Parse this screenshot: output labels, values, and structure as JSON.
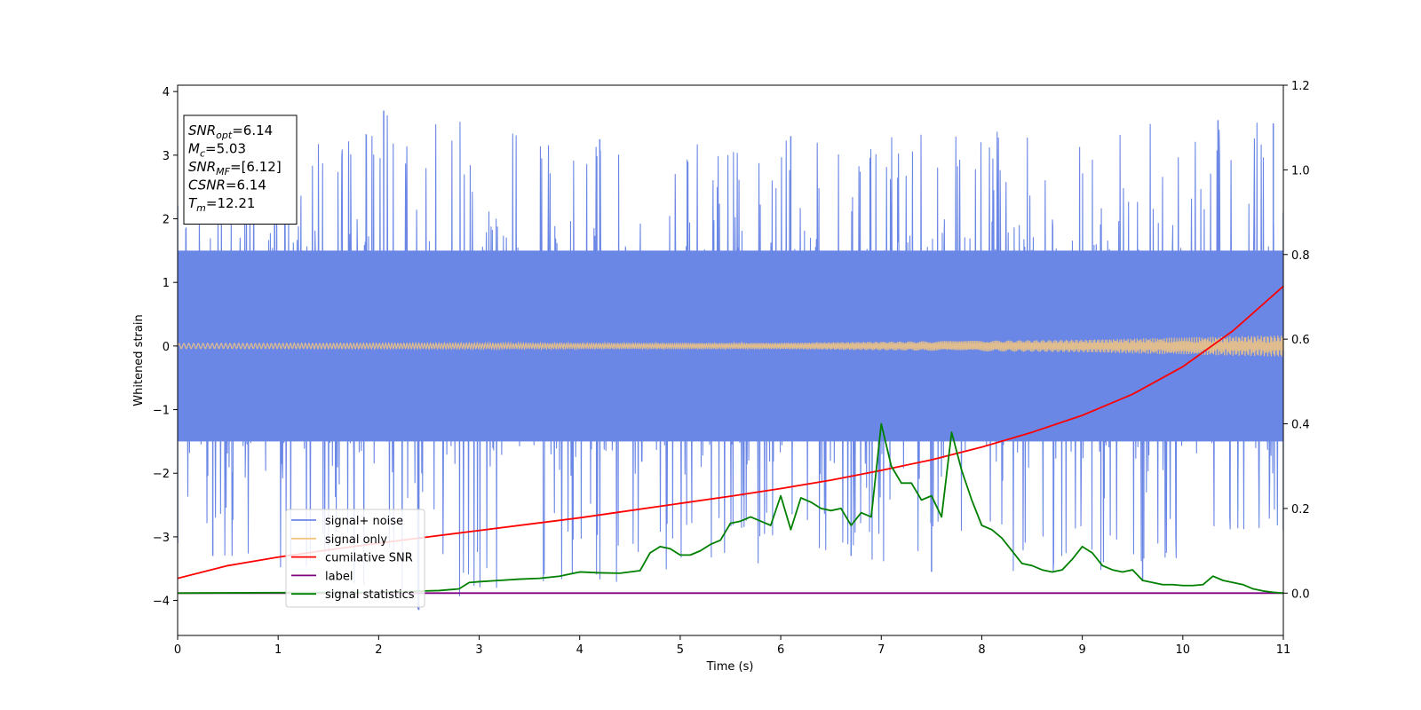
{
  "chart_data": {
    "type": "line",
    "xlabel": "Time (s)",
    "ylabel": "Whitened strain",
    "xlim": [
      0,
      11
    ],
    "ylim_left": [
      -4.55,
      4.1
    ],
    "ylim_right": [
      -0.1,
      1.2
    ],
    "x_ticks": [
      0,
      1,
      2,
      3,
      4,
      5,
      6,
      7,
      8,
      9,
      10,
      11
    ],
    "x_tick_labels": [
      "0",
      "1",
      "2",
      "3",
      "4",
      "5",
      "6",
      "7",
      "8",
      "9",
      "10",
      "11"
    ],
    "y_left_ticks": [
      4,
      3,
      2,
      1,
      0,
      -1,
      -2,
      -3,
      -4
    ],
    "y_left_tick_labels": [
      "4",
      "3",
      "2",
      "1",
      "0",
      "−1",
      "−2",
      "−3",
      "−4"
    ],
    "y_right_ticks": [
      1.2,
      1.0,
      0.8,
      0.6,
      0.4,
      0.2,
      0.0
    ],
    "y_right_tick_labels": [
      "1.2",
      "1.0",
      "0.8",
      "0.6",
      "0.4",
      "0.2",
      "0.0"
    ],
    "grid": false,
    "legend_position": "lower-left",
    "info_box": {
      "lines": [
        {
          "base": "SNR",
          "sub": "opt",
          "value": "=6.14"
        },
        {
          "base": "M",
          "sub": "c",
          "value": "=5.03"
        },
        {
          "base": "SNR",
          "sub": "MF",
          "value": "=[6.12]"
        },
        {
          "base": "CSNR",
          "sub": "",
          "value": "=6.14"
        },
        {
          "base": "T",
          "sub": "m",
          "value": "=12.21"
        }
      ]
    },
    "series": [
      {
        "name": "signal+ noise",
        "axis": "left",
        "color": "#6b87e6",
        "style": "noise",
        "envelope_upper": [
          [
            0,
            2.2
          ],
          [
            2.05,
            3.7
          ],
          [
            4.2,
            3.25
          ],
          [
            6.1,
            3.3
          ],
          [
            10.35,
            3.55
          ],
          [
            10.9,
            3.5
          ],
          [
            11,
            2.1
          ]
        ],
        "envelope_lower": [
          [
            0,
            -3.1
          ],
          [
            0.35,
            -3.3
          ],
          [
            2.4,
            -4.15
          ],
          [
            6.7,
            -3.3
          ],
          [
            7.5,
            -3.55
          ],
          [
            9.6,
            -3.7
          ],
          [
            11,
            -2.9
          ]
        ],
        "band_sigma": 0.9
      },
      {
        "name": "signal only",
        "axis": "left",
        "color": "#f5c77e",
        "style": "chirp",
        "amplitude": [
          [
            0,
            0.04
          ],
          [
            6,
            0.05
          ],
          [
            9,
            0.1
          ],
          [
            11,
            0.17
          ]
        ]
      },
      {
        "name": "cumilative SNR",
        "axis": "right",
        "color": "#ff0000",
        "x": [
          0,
          0.5,
          1,
          1.5,
          2,
          2.5,
          3,
          3.5,
          4,
          4.5,
          5,
          5.5,
          6,
          6.5,
          7,
          7.5,
          8,
          8.5,
          9,
          9.5,
          10,
          10.5,
          11
        ],
        "y": [
          0.035,
          0.065,
          0.085,
          0.102,
          0.118,
          0.133,
          0.148,
          0.163,
          0.178,
          0.195,
          0.212,
          0.229,
          0.247,
          0.267,
          0.29,
          0.315,
          0.345,
          0.38,
          0.42,
          0.47,
          0.535,
          0.62,
          0.725
        ]
      },
      {
        "name": "label",
        "axis": "right",
        "color": "#800080",
        "x": [
          0,
          11
        ],
        "y": [
          0.0,
          0.0
        ]
      },
      {
        "name": "signal statistics",
        "axis": "right",
        "color": "#008000",
        "x": [
          0,
          1,
          2,
          2.3,
          2.6,
          2.8,
          2.9,
          3.0,
          3.2,
          3.4,
          3.6,
          3.8,
          4.0,
          4.2,
          4.4,
          4.6,
          4.7,
          4.8,
          4.9,
          5.0,
          5.1,
          5.2,
          5.3,
          5.4,
          5.5,
          5.6,
          5.7,
          5.8,
          5.9,
          6.0,
          6.1,
          6.2,
          6.3,
          6.4,
          6.5,
          6.6,
          6.7,
          6.8,
          6.9,
          7.0,
          7.1,
          7.2,
          7.3,
          7.4,
          7.5,
          7.6,
          7.7,
          7.8,
          7.9,
          8.0,
          8.1,
          8.2,
          8.3,
          8.4,
          8.5,
          8.6,
          8.7,
          8.8,
          8.9,
          9.0,
          9.1,
          9.2,
          9.3,
          9.4,
          9.5,
          9.6,
          9.7,
          9.8,
          9.9,
          10.0,
          10.1,
          10.2,
          10.3,
          10.4,
          10.5,
          10.6,
          10.7,
          10.8,
          10.9,
          11.0
        ],
        "y": [
          0.0,
          0.001,
          0.002,
          0.004,
          0.006,
          0.01,
          0.025,
          0.027,
          0.03,
          0.033,
          0.035,
          0.04,
          0.05,
          0.048,
          0.047,
          0.053,
          0.095,
          0.11,
          0.105,
          0.09,
          0.09,
          0.1,
          0.115,
          0.125,
          0.165,
          0.17,
          0.18,
          0.17,
          0.16,
          0.23,
          0.15,
          0.225,
          0.215,
          0.2,
          0.195,
          0.2,
          0.16,
          0.19,
          0.18,
          0.4,
          0.3,
          0.26,
          0.26,
          0.22,
          0.23,
          0.18,
          0.38,
          0.29,
          0.22,
          0.16,
          0.15,
          0.13,
          0.1,
          0.07,
          0.065,
          0.055,
          0.05,
          0.055,
          0.08,
          0.11,
          0.095,
          0.065,
          0.055,
          0.05,
          0.055,
          0.03,
          0.025,
          0.02,
          0.02,
          0.018,
          0.018,
          0.02,
          0.04,
          0.03,
          0.025,
          0.02,
          0.01,
          0.005,
          0.002,
          0.0
        ]
      }
    ]
  }
}
